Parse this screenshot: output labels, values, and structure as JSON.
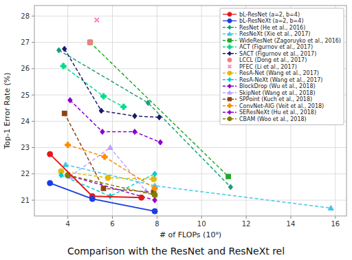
{
  "chart_data": {
    "type": "line",
    "title": "Comparison with the ResNet and ResNeXt rel",
    "x_label": "# of FLOPs (10⁹)",
    "y_label": "Top-1 Error Rate (%)",
    "xlim": [
      2.5,
      16.5
    ],
    "ylim": [
      20.4,
      28.4
    ],
    "xticks": [
      4,
      6,
      8,
      10,
      12,
      14,
      16
    ],
    "yticks": [
      21,
      22,
      23,
      24,
      25,
      26,
      27,
      28
    ],
    "grid": true,
    "legend": "upper right",
    "series": [
      {
        "name": "bL-ResNet (a=2, b=4)",
        "color": "#e61919",
        "marker": "circle",
        "line_style": "solid",
        "x": [
          3.2,
          5.1,
          7.3
        ],
        "values": [
          22.75,
          21.15,
          21.1
        ]
      },
      {
        "name": "bL-ResNeXt (a=2, b=4)",
        "color": "#1a3de4",
        "marker": "circle",
        "line_style": "solid",
        "x": [
          3.2,
          5.1,
          7.9
        ],
        "values": [
          21.65,
          21.05,
          20.58
        ]
      },
      {
        "name": "ResNet (He et al., 2016)",
        "color": "#1a9e7a",
        "marker": "diamond",
        "line_style": "dashed",
        "x": [
          3.6,
          7.6,
          11.3
        ],
        "values": [
          26.7,
          24.7,
          21.5
        ]
      },
      {
        "name": "ResNeXt (Xie et al., 2017)",
        "color": "#40c8e8",
        "marker": "triangle",
        "line_style": "dashed",
        "x": [
          3.9,
          7.9,
          15.8
        ],
        "values": [
          22.35,
          21.55,
          20.7
        ]
      },
      {
        "name": "WideResNet (Zagoruyko et al., 2016)",
        "color": "#22aa2a",
        "marker": "square",
        "line_style": "dashed",
        "x": [
          5.0,
          11.2
        ],
        "values": [
          27.0,
          21.9
        ]
      },
      {
        "name": "ACT (Figurnov et al., 2017)",
        "color": "#00dd88",
        "marker": "plus",
        "line_style": "dashed",
        "x": [
          3.8,
          5.6,
          6.5
        ],
        "values": [
          26.1,
          24.95,
          24.55
        ]
      },
      {
        "name": "SACT (Figurnov et al., 2017)",
        "color": "#1a1a6e",
        "marker": "diamond",
        "line_style": "dashed",
        "x": [
          3.85,
          5.5,
          7.0,
          8.1
        ],
        "values": [
          26.75,
          24.4,
          24.2,
          24.15
        ]
      },
      {
        "name": "LCCL (Dong et al., 2017)",
        "color": "#f08080",
        "marker": "circle",
        "line_style": "none",
        "x": [
          5.0
        ],
        "values": [
          27.0
        ]
      },
      {
        "name": "PFEC (Li et al., 2017)",
        "color": "#ff80c0",
        "marker": "x",
        "line_style": "none",
        "x": [
          5.3
        ],
        "values": [
          27.85
        ]
      },
      {
        "name": "ResA-Net (Wang et al., 2017)",
        "color": "#e8b800",
        "marker": "circle",
        "line_style": "dashed",
        "x": [
          3.7,
          5.8,
          7.85
        ],
        "values": [
          22.1,
          21.85,
          21.8
        ]
      },
      {
        "name": "ResA-NeXt (Wang et al., 2017)",
        "color": "#00cccc",
        "marker": "diamond",
        "line_style": "dashed",
        "x": [
          3.7,
          5.9,
          7.9
        ],
        "values": [
          21.95,
          21.15,
          22.0
        ]
      },
      {
        "name": "BlockDrop (Wu et al., 2018)",
        "color": "#8800cc",
        "marker": "diamond",
        "line_style": "dashed",
        "x": [
          4.1,
          5.55,
          7.0,
          8.15
        ],
        "values": [
          24.8,
          23.6,
          23.6,
          23.2
        ]
      },
      {
        "name": "SkipNet (Wang et al., 2018)",
        "color": "#c0a0ff",
        "marker": "triangle",
        "line_style": "dashed",
        "x": [
          4.1,
          5.9,
          7.5
        ],
        "values": [
          21.9,
          23.0,
          21.35
        ]
      },
      {
        "name": "SPPoint (Kuch et al., 2018)",
        "color": "#8b4513",
        "marker": "square",
        "line_style": "dashed",
        "x": [
          3.85,
          5.6,
          7.85
        ],
        "values": [
          24.3,
          21.45,
          21.3
        ]
      },
      {
        "name": "ConvNet-AIG (Veit et al., 2018)",
        "color": "#ff8c00",
        "marker": "plus",
        "line_style": "dashed",
        "x": [
          4.0,
          5.65,
          7.9
        ],
        "values": [
          23.1,
          22.65,
          21.45
        ]
      },
      {
        "name": "SEResNeXt (Hu et al., 2018)",
        "color": "#9900cc",
        "marker": "diamond",
        "line_style": "dashed",
        "x": [
          4.0,
          7.9
        ],
        "values": [
          21.95,
          21.0
        ]
      },
      {
        "name": "CBAM (Woo et al., 2018)",
        "color": "#808000",
        "marker": "circle",
        "line_style": "dashed",
        "x": [
          4.0,
          7.9
        ],
        "values": [
          21.95,
          21.2
        ]
      }
    ]
  }
}
